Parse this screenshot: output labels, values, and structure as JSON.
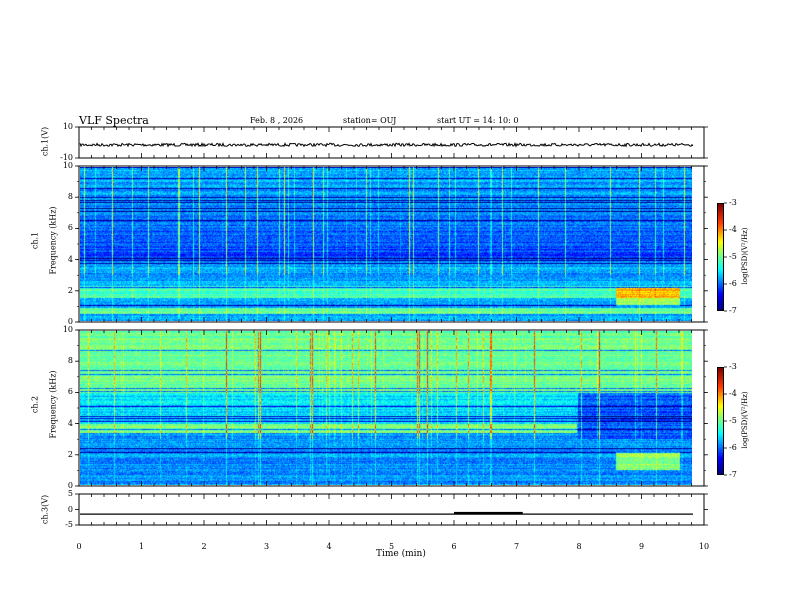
{
  "header": {
    "title": "VLF Spectra",
    "date": "Feb. 8  , 2026",
    "station": "station= OUJ",
    "start": "start  UT  =   14: 10: 0"
  },
  "chart_data": [
    {
      "type": "line",
      "name": "ch.1 waveform",
      "ylabel": "ch.1(V)",
      "ylim": [
        -10,
        10
      ],
      "yticks": [
        "10",
        "-10"
      ],
      "baseline": -1.5
    },
    {
      "type": "heatmap",
      "name": "ch.1 spectrogram",
      "ylabel": "ch.1\nFrequency (kHz)",
      "ylabel_top": "ch.1",
      "ylabel_bottom": "Frequency (kHz)",
      "ylim": [
        0,
        10
      ],
      "yticks": [
        "0",
        "2",
        "4",
        "6",
        "8",
        "10"
      ],
      "colorbar": {
        "label": "log(PSD)(V²/Hz)",
        "range": [
          -7,
          -3
        ],
        "ticks": [
          "-3",
          "-4",
          "-5",
          "-6",
          "-7"
        ]
      }
    },
    {
      "type": "heatmap",
      "name": "ch.2 spectrogram",
      "ylabel_top": "ch.2",
      "ylabel_bottom": "Frequency (kHz)",
      "ylim": [
        0,
        10
      ],
      "yticks": [
        "0",
        "2",
        "4",
        "6",
        "8",
        "10"
      ],
      "colorbar": {
        "label": "log(PSD)(V²/Hz)",
        "range": [
          -7,
          -3
        ],
        "ticks": [
          "-3",
          "-4",
          "-5",
          "-6",
          "-7"
        ]
      }
    },
    {
      "type": "line",
      "name": "ch.3 waveform",
      "ylabel": "ch.3(V)",
      "ylim": [
        -5,
        5
      ],
      "yticks": [
        "5",
        "0",
        "-5"
      ],
      "baseline": -1.5,
      "pulse": {
        "x": [
          6.0,
          7.1
        ],
        "value": -1.1
      }
    }
  ],
  "xaxis": {
    "label": "Time  (min)",
    "range": [
      0,
      10
    ],
    "ticks": [
      "0",
      "1",
      "2",
      "3",
      "4",
      "5",
      "6",
      "7",
      "8",
      "9",
      "10"
    ]
  },
  "colors": {
    "frame": "#000000",
    "background": "#ffffff"
  }
}
